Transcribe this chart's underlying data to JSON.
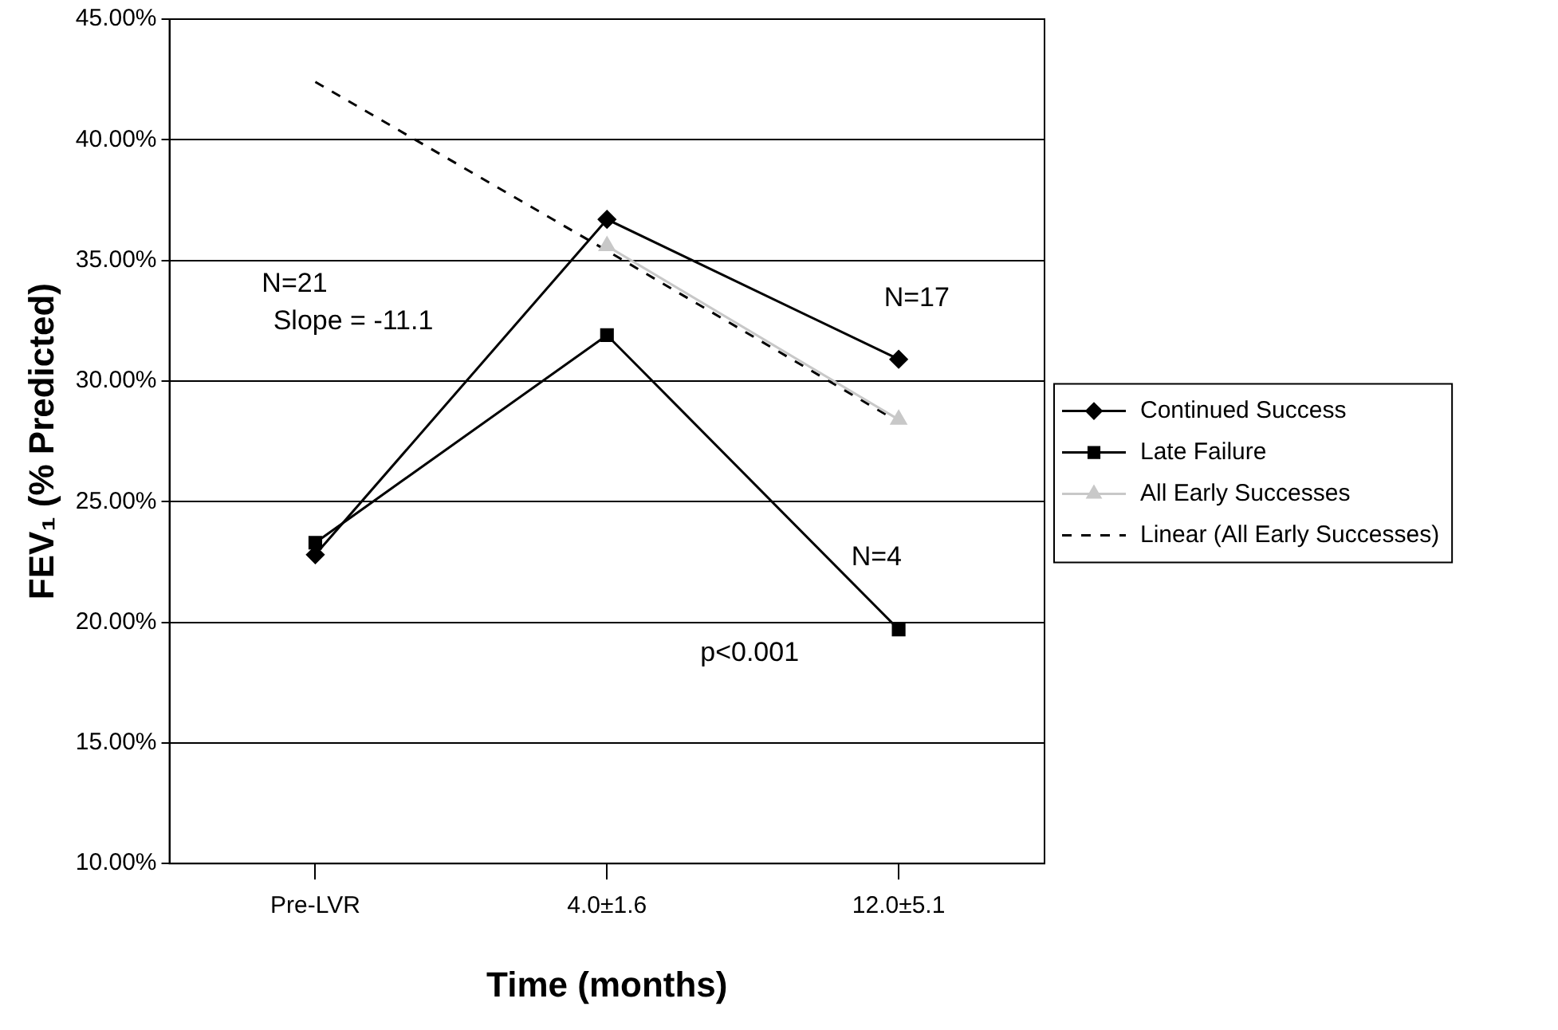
{
  "chart_data": {
    "type": "line",
    "xlabel": "Time (months)",
    "ylabel": "FEV₁ (% Predicted)",
    "categories": [
      "Pre-LVR",
      "4.0±1.6",
      "12.0±5.1"
    ],
    "series": [
      {
        "name": "Continued Success",
        "color": "#000000",
        "values": [
          22.8,
          36.7,
          30.9
        ],
        "marker": "diamond",
        "line_style": "solid"
      },
      {
        "name": "Late Failure",
        "color": "#000000",
        "values": [
          23.3,
          31.9,
          19.7
        ],
        "marker": "square",
        "line_style": "solid"
      },
      {
        "name": "All Early Successes",
        "color": "#c8c8c8",
        "values": [
          null,
          35.6,
          28.4
        ],
        "marker": "triangle",
        "line_style": "solid"
      },
      {
        "name": "Linear (All Early Successes)",
        "color": "#000000",
        "values": [
          42.4,
          35.4,
          28.3
        ],
        "marker": "none",
        "line_style": "dashed"
      }
    ],
    "ylim": [
      10,
      45
    ],
    "yticks": [
      {
        "value": 10,
        "label": "10.00%"
      },
      {
        "value": 15,
        "label": "15.00%"
      },
      {
        "value": 20,
        "label": "20.00%"
      },
      {
        "value": 25,
        "label": "25.00%"
      },
      {
        "value": 30,
        "label": "30.00%"
      },
      {
        "value": 35,
        "label": "35.00%"
      },
      {
        "value": 40,
        "label": "40.00%"
      },
      {
        "value": 45,
        "label": "45.00%"
      }
    ],
    "grid": "y",
    "legend": "right",
    "annotations": [
      "N=21",
      "Slope = -11.1",
      "N=17",
      "N=4",
      "p<0.001"
    ]
  }
}
